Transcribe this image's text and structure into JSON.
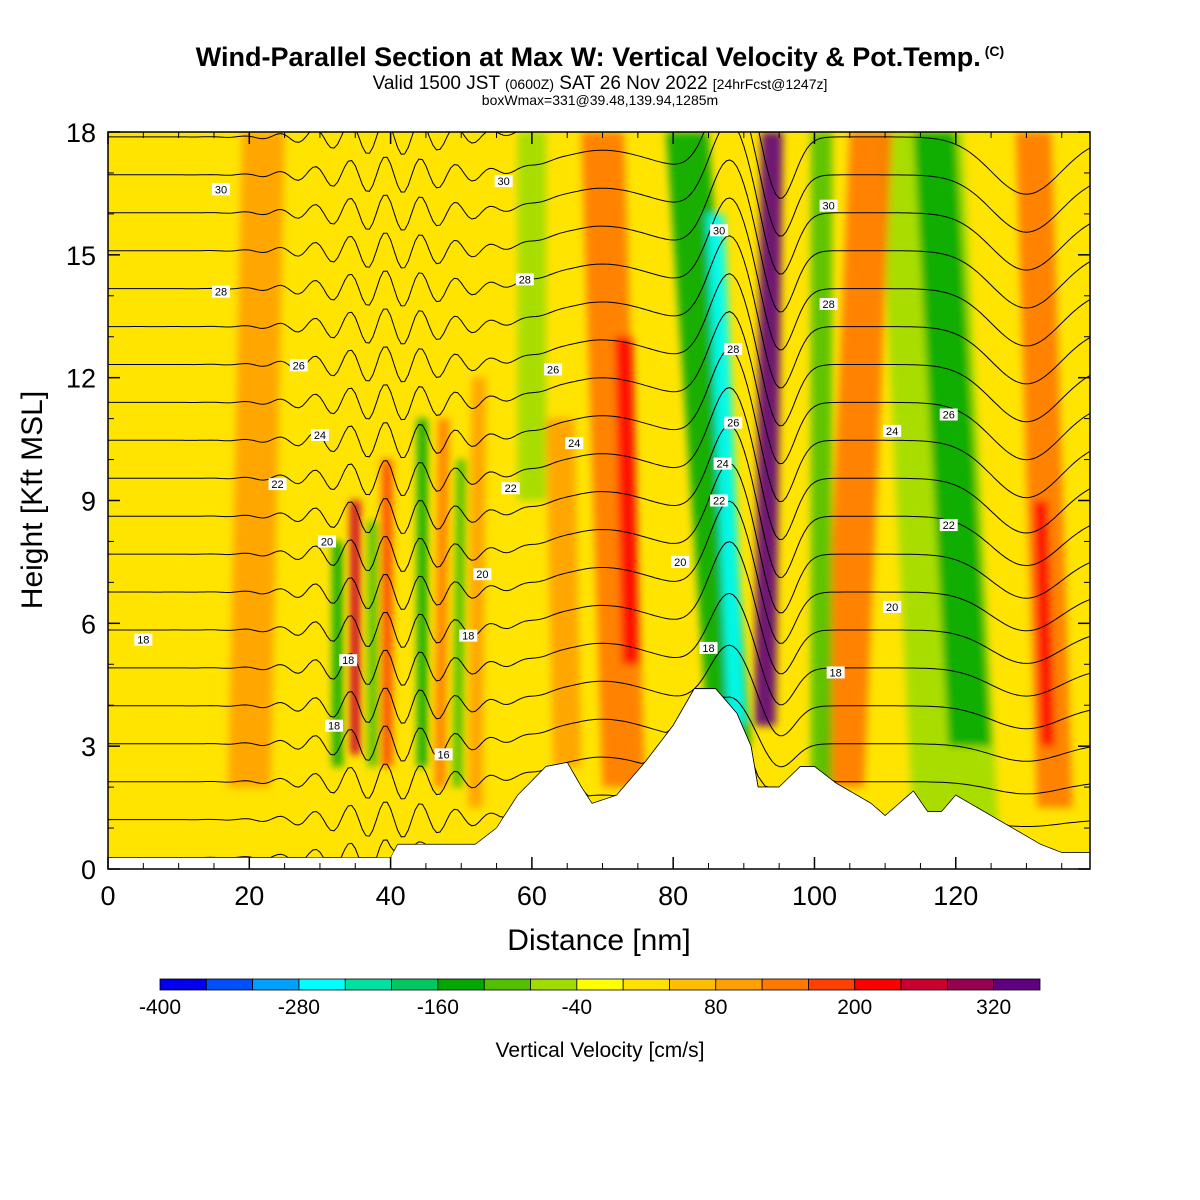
{
  "title": {
    "main": "Wind-Parallel Section at Max W: Vertical Velocity & Pot.Temp.",
    "copyright": "(C)",
    "valid_prefix": "Valid 1500 JST",
    "valid_utc": "(0600Z)",
    "valid_date": "SAT 26 Nov 2022",
    "forecast": "[24hrFcst@1247z]",
    "boxinfo": "boxWmax=331@39.48,139.94,1285m"
  },
  "chart_data": {
    "type": "contour",
    "xlabel": "Distance [nm]",
    "ylabel": "Height [Kft MSL]",
    "xlim": [
      0,
      139
    ],
    "ylim": [
      0,
      18
    ],
    "x_ticks": [
      "0",
      "20",
      "40",
      "60",
      "80",
      "100",
      "120"
    ],
    "y_ticks": [
      "0",
      "3",
      "6",
      "9",
      "12",
      "15",
      "18"
    ],
    "colorbar": {
      "label": "Vertical Velocity [cm/s]",
      "tick_labels": [
        "-400",
        "-280",
        "-160",
        "-40",
        "80",
        "200",
        "320"
      ],
      "levels": [
        -400,
        -360,
        -320,
        -280,
        -240,
        -200,
        -160,
        -120,
        -80,
        -40,
        0,
        40,
        80,
        120,
        160,
        200,
        240,
        280,
        320,
        360
      ],
      "colors": [
        "#0000ee",
        "#0050ff",
        "#00a0ff",
        "#00ffff",
        "#00e0a0",
        "#00c860",
        "#00a800",
        "#50c000",
        "#a0dc00",
        "#ffff00",
        "#ffe000",
        "#ffbf00",
        "#ffa000",
        "#ff7800",
        "#ff4000",
        "#ff0000",
        "#cc0030",
        "#990050",
        "#600080"
      ]
    },
    "terrain_kft": [
      [
        0,
        0.28
      ],
      [
        40,
        0.28
      ],
      [
        41,
        0.6
      ],
      [
        47,
        0.6
      ],
      [
        52,
        0.6
      ],
      [
        55,
        1.0
      ],
      [
        58,
        1.8
      ],
      [
        62,
        2.5
      ],
      [
        65,
        2.6
      ],
      [
        67,
        2.0
      ],
      [
        68.5,
        1.6
      ],
      [
        72,
        1.8
      ],
      [
        76,
        2.6
      ],
      [
        80,
        3.5
      ],
      [
        83,
        4.4
      ],
      [
        86,
        4.4
      ],
      [
        89,
        3.8
      ],
      [
        91,
        3.0
      ],
      [
        92,
        2.0
      ],
      [
        95,
        2.0
      ],
      [
        98,
        2.5
      ],
      [
        100,
        2.5
      ],
      [
        103,
        2.1
      ],
      [
        106,
        1.8
      ],
      [
        108,
        1.6
      ],
      [
        110,
        1.3
      ],
      [
        112,
        1.6
      ],
      [
        114,
        1.9
      ],
      [
        116,
        1.4
      ],
      [
        118,
        1.4
      ],
      [
        120,
        1.8
      ],
      [
        124,
        1.4
      ],
      [
        128,
        1.0
      ],
      [
        132,
        0.6
      ],
      [
        135,
        0.4
      ],
      [
        139,
        0.4
      ]
    ],
    "updraft_bands": [
      {
        "w": 240,
        "x0": 35,
        "x1": 35,
        "y0": 2.8,
        "y1": 9.0,
        "width": 1.5
      },
      {
        "w": 160,
        "x0": 39.5,
        "x1": 39.5,
        "y0": 2.5,
        "y1": 10.0,
        "width": 1.5
      },
      {
        "w": 120,
        "x0": 47,
        "x1": 47.5,
        "y0": 2.0,
        "y1": 11.0,
        "width": 1.5
      },
      {
        "w": 80,
        "x0": 52,
        "x1": 52.5,
        "y0": 1.5,
        "y1": 12.0,
        "width": 2
      },
      {
        "w": 80,
        "x0": 65,
        "x1": 64,
        "y0": 2.5,
        "y1": 11.0,
        "width": 4
      },
      {
        "w": 200,
        "x0": 74,
        "x1": 73,
        "y0": 5.0,
        "y1": 13.0,
        "width": 2.5
      },
      {
        "w": 120,
        "x0": 73,
        "x1": 70,
        "y0": 2.0,
        "y1": 18.0,
        "width": 6
      },
      {
        "w": 360,
        "x0": 93,
        "x1": 94,
        "y0": 3.5,
        "y1": 18.0,
        "width": 3
      },
      {
        "w": 120,
        "x0": 104,
        "x1": 108,
        "y0": 2.0,
        "y1": 18.0,
        "width": 6
      },
      {
        "w": 200,
        "x0": 133,
        "x1": 132,
        "y0": 3.0,
        "y1": 9.0,
        "width": 2
      },
      {
        "w": 120,
        "x0": 134,
        "x1": 131,
        "y0": 1.5,
        "y1": 18.0,
        "width": 5
      },
      {
        "w": 80,
        "x0": 20,
        "x1": 22,
        "y0": 2.0,
        "y1": 18.0,
        "width": 6
      }
    ],
    "downdraft_bands": [
      {
        "w": -160,
        "x0": 32.5,
        "x1": 32.5,
        "y0": 2.5,
        "y1": 8.0,
        "width": 1.5
      },
      {
        "w": -120,
        "x0": 37.5,
        "x1": 37.5,
        "y0": 2.5,
        "y1": 8.5,
        "width": 1.5
      },
      {
        "w": -160,
        "x0": 44.5,
        "x1": 44.5,
        "y0": 2.5,
        "y1": 11.0,
        "width": 1.5
      },
      {
        "w": -120,
        "x0": 49.5,
        "x1": 50,
        "y0": 2.0,
        "y1": 10.0,
        "width": 1.5
      },
      {
        "w": -80,
        "x0": 60,
        "x1": 60,
        "y0": 9.0,
        "y1": 18.0,
        "width": 4
      },
      {
        "w": -280,
        "x0": 89,
        "x1": 86,
        "y0": 3.5,
        "y1": 16.0,
        "width": 2.5
      },
      {
        "w": -160,
        "x0": 88,
        "x1": 82,
        "y0": 3.0,
        "y1": 18.0,
        "width": 6
      },
      {
        "w": -120,
        "x0": 101,
        "x1": 101,
        "y0": 2.0,
        "y1": 18.0,
        "width": 3
      },
      {
        "w": -160,
        "x0": 122,
        "x1": 117,
        "y0": 3.0,
        "y1": 18.0,
        "width": 6
      },
      {
        "w": -80,
        "x0": 120,
        "x1": 115,
        "y0": 1.0,
        "y1": 18.0,
        "width": 12
      }
    ],
    "theta_levels": [
      13,
      14,
      15,
      16,
      17,
      18,
      19,
      20,
      21,
      22,
      23,
      24,
      25,
      26,
      27,
      28,
      29,
      30,
      31,
      32
    ],
    "theta_labels": [
      {
        "text": "30",
        "x": 16,
        "y": 16.6
      },
      {
        "text": "28",
        "x": 16,
        "y": 14.1
      },
      {
        "text": "26",
        "x": 27,
        "y": 12.3
      },
      {
        "text": "24",
        "x": 30,
        "y": 10.6
      },
      {
        "text": "22",
        "x": 24,
        "y": 9.4
      },
      {
        "text": "20",
        "x": 31,
        "y": 8.0
      },
      {
        "text": "18",
        "x": 5,
        "y": 5.6
      },
      {
        "text": "18",
        "x": 34,
        "y": 5.1
      },
      {
        "text": "18",
        "x": 32,
        "y": 3.5
      },
      {
        "text": "16",
        "x": 47.5,
        "y": 2.8
      },
      {
        "text": "18",
        "x": 51,
        "y": 5.7
      },
      {
        "text": "20",
        "x": 53,
        "y": 7.2
      },
      {
        "text": "22",
        "x": 57,
        "y": 9.3
      },
      {
        "text": "24",
        "x": 66,
        "y": 10.4
      },
      {
        "text": "26",
        "x": 63,
        "y": 12.2
      },
      {
        "text": "28",
        "x": 59,
        "y": 14.4
      },
      {
        "text": "30",
        "x": 56,
        "y": 16.8
      },
      {
        "text": "20",
        "x": 81,
        "y": 7.5
      },
      {
        "text": "18",
        "x": 85,
        "y": 5.4
      },
      {
        "text": "22",
        "x": 86.5,
        "y": 9.0
      },
      {
        "text": "24",
        "x": 87,
        "y": 9.9
      },
      {
        "text": "26",
        "x": 88.5,
        "y": 10.9
      },
      {
        "text": "28",
        "x": 88.5,
        "y": 12.7
      },
      {
        "text": "30",
        "x": 86.5,
        "y": 15.6
      },
      {
        "text": "30",
        "x": 102,
        "y": 16.2
      },
      {
        "text": "28",
        "x": 102,
        "y": 13.8
      },
      {
        "text": "18",
        "x": 103,
        "y": 4.8
      },
      {
        "text": "20",
        "x": 111,
        "y": 6.4
      },
      {
        "text": "24",
        "x": 111,
        "y": 10.7
      },
      {
        "text": "26",
        "x": 119,
        "y": 11.1
      },
      {
        "text": "22",
        "x": 119,
        "y": 8.4
      }
    ]
  }
}
